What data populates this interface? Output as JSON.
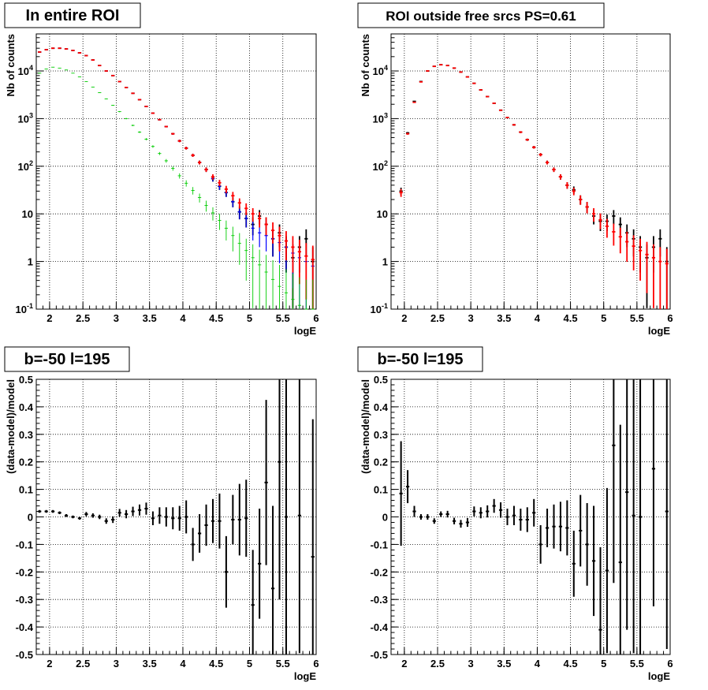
{
  "chart_data": [
    {
      "type": "scatter",
      "title": "In entire ROI",
      "xlabel": "logE",
      "ylabel": "Nb of counts",
      "xlim": [
        1.8,
        6.0
      ],
      "ylim": [
        0.1,
        60000
      ],
      "yscale": "log",
      "grid": true,
      "xticks": [
        "2",
        "2.5",
        "3",
        "3.5",
        "4",
        "4.5",
        "5",
        "5.5",
        "6"
      ],
      "yticks": [
        "10^{-1}",
        "1",
        "10",
        "10^{2}",
        "10^{3}",
        "10^{4}"
      ],
      "x": [
        1.85,
        1.95,
        2.05,
        2.15,
        2.25,
        2.35,
        2.45,
        2.55,
        2.65,
        2.75,
        2.85,
        2.95,
        3.05,
        3.15,
        3.25,
        3.35,
        3.45,
        3.55,
        3.65,
        3.75,
        3.85,
        3.95,
        4.05,
        4.15,
        4.25,
        4.35,
        4.45,
        4.55,
        4.65,
        4.75,
        4.85,
        4.95,
        5.05,
        5.15,
        5.25,
        5.35,
        5.45,
        5.55,
        5.65,
        5.75,
        5.85,
        5.95
      ],
      "series": [
        {
          "color": "#000000",
          "values": [
            25000,
            28000,
            30000,
            30000,
            29000,
            27000,
            24000,
            21000,
            17000,
            13000,
            10000,
            8000,
            6000,
            4500,
            3400,
            2500,
            1800,
            1300,
            950,
            680,
            480,
            340,
            240,
            170,
            120,
            85,
            55,
            38,
            28,
            18,
            11,
            8,
            6,
            9,
            6,
            3,
            4,
            2,
            1.2,
            2,
            3,
            1
          ]
        },
        {
          "color": "#0000ff",
          "values": [
            25000,
            28000,
            30000,
            30000,
            29000,
            27000,
            24000,
            21000,
            17000,
            13000,
            10000,
            8000,
            6000,
            4500,
            3400,
            2500,
            1800,
            1300,
            950,
            680,
            480,
            340,
            240,
            170,
            120,
            85,
            55,
            38,
            28,
            18,
            11,
            8,
            5,
            4,
            3.5,
            3,
            2.5,
            2,
            1.5,
            1.2,
            1,
            0.8
          ]
        },
        {
          "color": "#ff0000",
          "values": [
            25000,
            28000,
            30000,
            30000,
            29000,
            27000,
            24000,
            21000,
            17000,
            13000,
            10000,
            8000,
            6000,
            4500,
            3400,
            2500,
            1800,
            1300,
            950,
            680,
            480,
            340,
            240,
            170,
            120,
            85,
            60,
            45,
            33,
            24,
            17,
            13,
            10,
            8,
            6,
            4.5,
            3.5,
            2.7,
            2,
            1.6,
            1.3,
            1.1
          ]
        },
        {
          "color": "#00cc00",
          "values": [
            9000,
            11000,
            12000,
            11500,
            10500,
            9000,
            7500,
            6000,
            4600,
            3500,
            2600,
            1900,
            1400,
            1000,
            720,
            520,
            370,
            260,
            185,
            130,
            90,
            63,
            44,
            31,
            22,
            15,
            10.5,
            7.3,
            5,
            3.5,
            2.4,
            1.7,
            1.2,
            0.85,
            0.6,
            0.42,
            0.3,
            0.22,
            0.16,
            0.12,
            0.1,
            0.1
          ]
        }
      ]
    },
    {
      "type": "scatter",
      "title": "ROI outside free srcs PS=0.61",
      "xlabel": "logE",
      "ylabel": "Nb of counts",
      "xlim": [
        1.8,
        6.0
      ],
      "ylim": [
        0.1,
        60000
      ],
      "yscale": "log",
      "grid": true,
      "xticks": [
        "2",
        "2.5",
        "3",
        "3.5",
        "4",
        "4.5",
        "5",
        "5.5",
        "6"
      ],
      "yticks": [
        "10^{-1}",
        "1",
        "10",
        "10^{2}",
        "10^{3}",
        "10^{4}"
      ],
      "x": [
        1.95,
        2.05,
        2.15,
        2.25,
        2.35,
        2.45,
        2.55,
        2.65,
        2.75,
        2.85,
        2.95,
        3.05,
        3.15,
        3.25,
        3.35,
        3.45,
        3.55,
        3.65,
        3.75,
        3.85,
        3.95,
        4.05,
        4.15,
        4.25,
        4.35,
        4.45,
        4.55,
        4.65,
        4.75,
        4.85,
        4.95,
        5.05,
        5.15,
        5.25,
        5.35,
        5.45,
        5.55,
        5.65,
        5.75,
        5.85,
        5.95
      ],
      "series": [
        {
          "color": "#000000",
          "values": [
            30,
            500,
            2300,
            6000,
            10000,
            12500,
            13500,
            13000,
            11500,
            9500,
            7500,
            5500,
            4000,
            2900,
            2100,
            1500,
            1050,
            740,
            520,
            360,
            250,
            175,
            120,
            85,
            60,
            40,
            32,
            20,
            14,
            9,
            7,
            7,
            9,
            6,
            4,
            3,
            2,
            1.2,
            2,
            3,
            1
          ]
        },
        {
          "color": "#ff0000",
          "values": [
            28,
            480,
            2200,
            5900,
            10000,
            12500,
            13500,
            13000,
            11500,
            9500,
            7500,
            5500,
            4000,
            2900,
            2100,
            1500,
            1050,
            740,
            520,
            360,
            250,
            175,
            120,
            85,
            60,
            40,
            30,
            20,
            14,
            10,
            7.5,
            5.5,
            4.2,
            3.3,
            2.6,
            2.1,
            1.7,
            1.4,
            1.2,
            1.0,
            0.9
          ]
        }
      ]
    },
    {
      "type": "scatter",
      "title": "b=-50 l=195",
      "xlabel": "logE",
      "ylabel": "(data-model)/model",
      "xlim": [
        1.8,
        6.0
      ],
      "ylim": [
        -0.5,
        0.5
      ],
      "grid": true,
      "xticks": [
        "2",
        "2.5",
        "3",
        "3.5",
        "4",
        "4.5",
        "5",
        "5.5",
        "6"
      ],
      "yticks": [
        "-0.5",
        "-0.4",
        "-0.3",
        "-0.2",
        "-0.1",
        "0",
        "0.1",
        "0.2",
        "0.3",
        "0.4",
        "0.5"
      ],
      "x": [
        1.85,
        1.95,
        2.05,
        2.15,
        2.25,
        2.35,
        2.45,
        2.55,
        2.65,
        2.75,
        2.85,
        2.95,
        3.05,
        3.15,
        3.25,
        3.35,
        3.45,
        3.55,
        3.65,
        3.75,
        3.85,
        3.95,
        4.05,
        4.15,
        4.25,
        4.35,
        4.45,
        4.55,
        4.65,
        4.75,
        4.85,
        4.95,
        5.05,
        5.15,
        5.25,
        5.35,
        5.45,
        5.55,
        5.75,
        5.95
      ],
      "y": [
        0.02,
        0.02,
        0.02,
        0.015,
        0.005,
        0,
        -0.005,
        0.01,
        0.005,
        0,
        -0.015,
        -0.01,
        0.015,
        0.01,
        0.02,
        0.025,
        0.03,
        -0.005,
        0.005,
        0,
        -0.005,
        -0.005,
        0,
        -0.1,
        -0.06,
        -0.03,
        -0.015,
        -0.015,
        -0.2,
        -0.01,
        -0.01,
        -0.005,
        -0.32,
        -0.17,
        0.125,
        -0.26,
        0.2,
        0.0,
        0.005,
        -0.145
      ],
      "error": [
        0.005,
        0.005,
        0.005,
        0.005,
        0.005,
        0.005,
        0.005,
        0.008,
        0.008,
        0.008,
        0.01,
        0.012,
        0.014,
        0.015,
        0.017,
        0.02,
        0.022,
        0.025,
        0.03,
        0.035,
        0.04,
        0.045,
        0.06,
        0.06,
        0.07,
        0.075,
        0.08,
        0.1,
        0.13,
        0.09,
        0.13,
        0.14,
        0.2,
        0.2,
        0.3,
        0.3,
        0.5,
        0.5,
        0.5,
        0.5
      ]
    },
    {
      "type": "scatter",
      "title": "b=-50 l=195",
      "xlabel": "logE",
      "ylabel": "(data-model)/model",
      "xlim": [
        1.8,
        6.0
      ],
      "ylim": [
        -0.5,
        0.5
      ],
      "grid": true,
      "xticks": [
        "2",
        "2.5",
        "3",
        "3.5",
        "4",
        "4.5",
        "5",
        "5.5",
        "6"
      ],
      "yticks": [
        "-0.5",
        "-0.4",
        "-0.3",
        "-0.2",
        "-0.1",
        "0",
        "0.1",
        "0.2",
        "0.3",
        "0.4",
        "0.5"
      ],
      "x": [
        1.95,
        2.05,
        2.15,
        2.25,
        2.35,
        2.45,
        2.55,
        2.65,
        2.75,
        2.85,
        2.95,
        3.05,
        3.15,
        3.25,
        3.35,
        3.45,
        3.55,
        3.65,
        3.75,
        3.85,
        3.95,
        4.05,
        4.15,
        4.25,
        4.35,
        4.45,
        4.55,
        4.65,
        4.75,
        4.85,
        4.95,
        5.05,
        5.15,
        5.25,
        5.35,
        5.45,
        5.55,
        5.75,
        5.95
      ],
      "y": [
        0.085,
        0.11,
        0.02,
        0.0,
        0.0,
        -0.015,
        0.01,
        0.01,
        -0.015,
        -0.025,
        -0.02,
        0.02,
        0.015,
        0.02,
        0.04,
        0.025,
        0.0,
        0.005,
        -0.01,
        -0.01,
        0.015,
        -0.1,
        -0.04,
        -0.035,
        -0.035,
        -0.04,
        -0.17,
        -0.05,
        -0.1,
        -0.16,
        -0.41,
        -0.195,
        0.26,
        -0.165,
        0.09,
        0.005,
        0.0,
        0.175,
        0.02
      ],
      "error": [
        0.19,
        0.06,
        0.02,
        0.01,
        0.01,
        0.01,
        0.01,
        0.012,
        0.012,
        0.014,
        0.016,
        0.018,
        0.02,
        0.022,
        0.025,
        0.028,
        0.03,
        0.035,
        0.04,
        0.045,
        0.05,
        0.07,
        0.07,
        0.08,
        0.09,
        0.1,
        0.12,
        0.13,
        0.15,
        0.2,
        0.3,
        0.3,
        0.5,
        0.5,
        0.5,
        0.5,
        0.5,
        0.5,
        0.5
      ]
    }
  ]
}
